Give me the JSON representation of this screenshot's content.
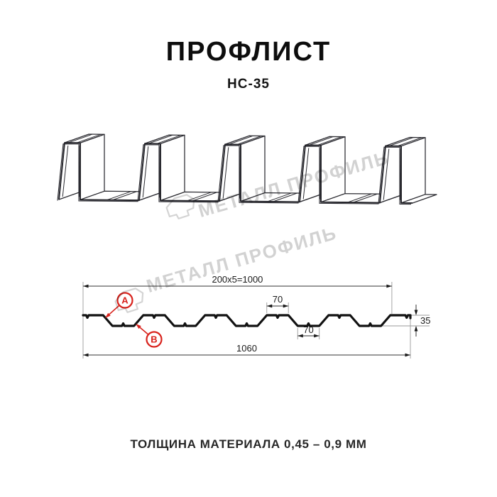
{
  "page": {
    "title": "ПРОФЛИСТ",
    "subtitle": "НС-35",
    "footer": "ТОЛЩИНА МАТЕРИАЛА 0,45 – 0,9 ММ"
  },
  "watermark": {
    "text": "МЕТАЛЛ ПРОФИЛЬ",
    "color": "#d2d2d2"
  },
  "diagram": {
    "dims": {
      "coverage": "200x5=1000",
      "overall": "1060",
      "crest_width": "70",
      "valley_width": "70",
      "height": "35"
    },
    "labels": {
      "a": "A",
      "b": "B"
    },
    "accent_red": "#d8221c",
    "line_color": "#2b2b31"
  }
}
